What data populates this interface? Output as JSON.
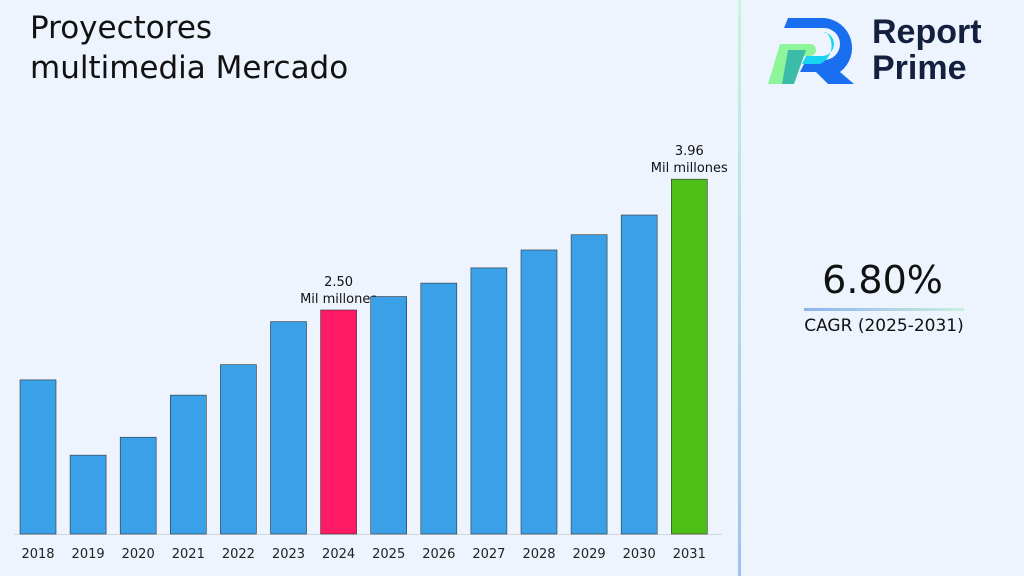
{
  "title": "Proyectores\nmultimedia Mercado",
  "logo": {
    "text": "Report\nPrime"
  },
  "cagr": {
    "value": "6.80%",
    "label": "CAGR (2025-2031)"
  },
  "colors": {
    "default_bar": "#3aa0e8",
    "highlight_2024": "#ff1a66",
    "highlight_2031": "#4cc016"
  },
  "chart_data": {
    "type": "bar",
    "categories": [
      "2018",
      "2019",
      "2020",
      "2021",
      "2022",
      "2023",
      "2024",
      "2025",
      "2026",
      "2027",
      "2028",
      "2029",
      "2030",
      "2031"
    ],
    "values": [
      1.72,
      0.88,
      1.08,
      1.55,
      1.89,
      2.37,
      2.5,
      2.65,
      2.8,
      2.97,
      3.17,
      3.34,
      3.56,
      3.96
    ],
    "unit": "Mil millones",
    "annotations": [
      {
        "category": "2024",
        "value": "2.50",
        "unit": "Mil millones"
      },
      {
        "category": "2031",
        "value": "3.96",
        "unit": "Mil millones"
      }
    ],
    "ylim": [
      0,
      4.2
    ],
    "grid": false,
    "xlabel": "",
    "ylabel": ""
  }
}
